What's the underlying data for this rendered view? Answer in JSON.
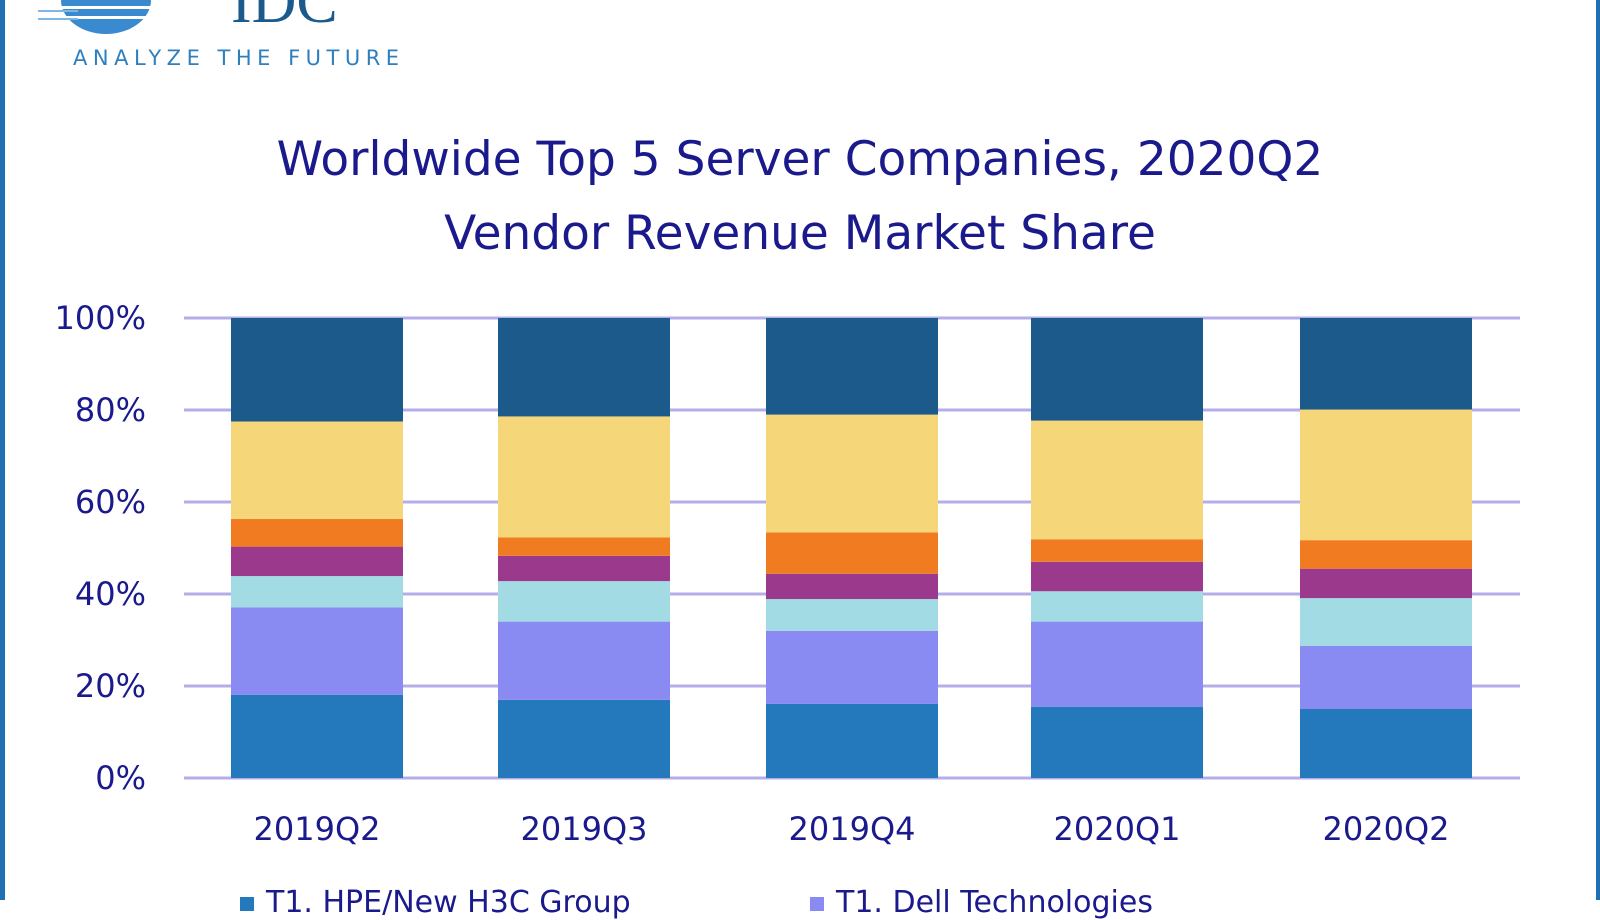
{
  "logo": {
    "text": "IDC",
    "tagline": "ANALYZE THE FUTURE"
  },
  "chart_data": {
    "type": "bar",
    "stacked": true,
    "title": "Worldwide Top 5 Server Companies, 2020Q2",
    "subtitle": "Vendor Revenue Market Share",
    "xlabel": "",
    "ylabel": "",
    "categories": [
      "2019Q2",
      "2019Q3",
      "2019Q4",
      "2020Q1",
      "2020Q2"
    ],
    "ylim": [
      0,
      100
    ],
    "yticks": [
      "0%",
      "20%",
      "40%",
      "60%",
      "80%",
      "100%"
    ],
    "grid": true,
    "legend_position": "bottom",
    "series": [
      {
        "name": "T1. HPE/New H3C Group",
        "color": "#2479bd",
        "values": [
          18.1,
          17.0,
          16.1,
          15.5,
          15.0
        ]
      },
      {
        "name": "T1. Dell Technologies",
        "color": "#8a8af3",
        "values": [
          19.0,
          17.0,
          15.9,
          18.5,
          13.7
        ]
      },
      {
        "color": "#a3dbe5",
        "values": [
          6.8,
          8.8,
          6.9,
          6.6,
          10.4
        ]
      },
      {
        "color": "#9b3a8c",
        "values": [
          6.4,
          5.5,
          5.5,
          6.4,
          6.4
        ]
      },
      {
        "color": "#f07b21",
        "values": [
          6.0,
          4.0,
          9.0,
          4.9,
          6.2
        ]
      },
      {
        "color": "#f5d779",
        "values": [
          21.2,
          26.3,
          25.6,
          25.8,
          28.4
        ]
      },
      {
        "color": "#1b5a8b",
        "values": [
          22.5,
          21.4,
          21.0,
          22.3,
          19.9
        ]
      }
    ]
  },
  "colors": {
    "grid": "#b4aee8",
    "text": "#1a1a8c",
    "frame": "#1f6fb2"
  }
}
